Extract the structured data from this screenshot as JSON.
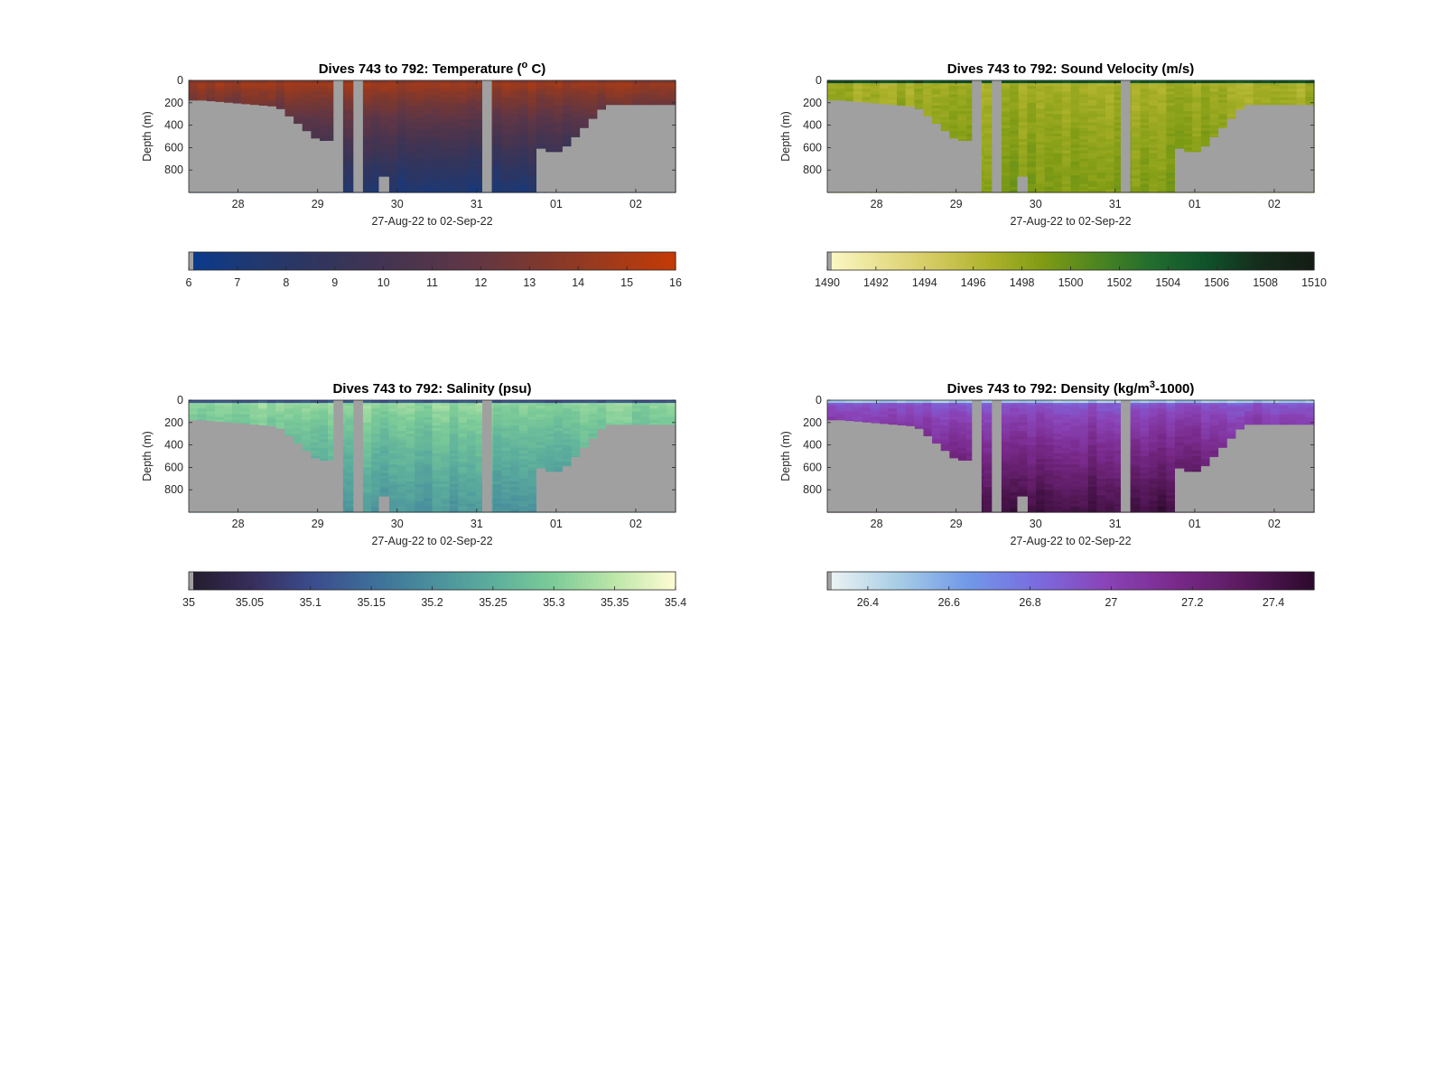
{
  "figure": {
    "background": "#ffffff",
    "land_color": "#a0a0a0"
  },
  "chart_data": [
    {
      "type": "heatmap",
      "title": "Dives 743 to 792: Temperature (° C)",
      "title_parts": [
        "Dives 743 to 792: Temperature (",
        "o",
        " C)"
      ],
      "xlabel": "27-Aug-22 to 02-Sep-22",
      "ylabel": "Depth (m)",
      "xticks": [
        "28",
        "29",
        "30",
        "31",
        "01",
        "02"
      ],
      "xtick_values": [
        28,
        29,
        30,
        31,
        32,
        33
      ],
      "xlim": [
        27.38,
        33.5
      ],
      "yticks": [
        "0",
        "200",
        "400",
        "600",
        "800"
      ],
      "ytick_values": [
        0,
        200,
        400,
        600,
        800
      ],
      "ylim": [
        1000,
        0
      ],
      "colorbar": {
        "range": [
          6,
          16
        ],
        "ticks": [
          "6",
          "7",
          "8",
          "9",
          "10",
          "11",
          "12",
          "13",
          "14",
          "15",
          "16"
        ],
        "tick_values": [
          6,
          7,
          8,
          9,
          10,
          11,
          12,
          13,
          14,
          15,
          16
        ],
        "colors": [
          "#0a3a8c",
          "#22386e",
          "#33355c",
          "#47344f",
          "#5e3646",
          "#7c382f",
          "#9e3a1c",
          "#c43a06"
        ]
      },
      "surface_value": 13.5,
      "bottom_value": 7.0,
      "near_surface_value": 14.5
    },
    {
      "type": "heatmap",
      "title": "Dives 743 to 792: Sound Velocity (m/s)",
      "title_parts": [
        "Dives 743 to 792: Sound Velocity (m/s)"
      ],
      "xlabel": "27-Aug-22 to 02-Sep-22",
      "ylabel": "Depth (m)",
      "xticks": [
        "28",
        "29",
        "30",
        "31",
        "01",
        "02"
      ],
      "xtick_values": [
        28,
        29,
        30,
        31,
        32,
        33
      ],
      "xlim": [
        27.38,
        33.5
      ],
      "yticks": [
        "0",
        "200",
        "400",
        "600",
        "800"
      ],
      "ytick_values": [
        0,
        200,
        400,
        600,
        800
      ],
      "ylim": [
        1000,
        0
      ],
      "colorbar": {
        "range": [
          1490,
          1510
        ],
        "ticks": [
          "1490",
          "1492",
          "1494",
          "1496",
          "1498",
          "1500",
          "1502",
          "1504",
          "1506",
          "1508",
          "1510"
        ],
        "tick_values": [
          1490,
          1492,
          1494,
          1496,
          1498,
          1500,
          1502,
          1504,
          1506,
          1508,
          1510
        ],
        "colors": [
          "#fcf8c6",
          "#e8df8e",
          "#d2c95d",
          "#adb22a",
          "#7f9b14",
          "#4d8521",
          "#226d2e",
          "#0f532b",
          "#152d1c",
          "#141d14"
        ]
      },
      "surface_value": 1505.5,
      "bottom_value": 1499.0,
      "near_surface_value": 1497.0
    },
    {
      "type": "heatmap",
      "title": "Dives 743 to 792: Salinity (psu)",
      "title_parts": [
        "Dives 743 to 792: Salinity (psu)"
      ],
      "xlabel": "27-Aug-22 to 02-Sep-22",
      "ylabel": "Depth (m)",
      "xticks": [
        "28",
        "29",
        "30",
        "31",
        "01",
        "02"
      ],
      "xtick_values": [
        28,
        29,
        30,
        31,
        32,
        33
      ],
      "xlim": [
        27.38,
        33.5
      ],
      "yticks": [
        "0",
        "200",
        "400",
        "600",
        "800"
      ],
      "ytick_values": [
        0,
        200,
        400,
        600,
        800
      ],
      "ylim": [
        1000,
        0
      ],
      "colorbar": {
        "range": [
          35,
          35.4
        ],
        "ticks": [
          "35",
          "35.05",
          "35.1",
          "35.15",
          "35.2",
          "35.25",
          "35.3",
          "35.35",
          "35.4"
        ],
        "tick_values": [
          35,
          35.05,
          35.1,
          35.15,
          35.2,
          35.25,
          35.3,
          35.35,
          35.4
        ],
        "colors": [
          "#241c2e",
          "#382e5c",
          "#3b4b8c",
          "#3d6e99",
          "#4a8f9c",
          "#5cae9c",
          "#7ccb98",
          "#bbe6a8",
          "#fdfbd2"
        ]
      },
      "surface_value": 35.12,
      "bottom_value": 35.21,
      "near_surface_value": 35.32
    },
    {
      "type": "heatmap",
      "title": "Dives 743 to 792: Density (kg/m³-1000)",
      "title_parts": [
        "Dives 743 to 792: Density (kg/m",
        "3",
        "-1000)"
      ],
      "xlabel": "27-Aug-22 to 02-Sep-22",
      "ylabel": "Depth (m)",
      "xticks": [
        "28",
        "29",
        "30",
        "31",
        "01",
        "02"
      ],
      "xtick_values": [
        28,
        29,
        30,
        31,
        32,
        33
      ],
      "xlim": [
        27.38,
        33.5
      ],
      "yticks": [
        "0",
        "200",
        "400",
        "600",
        "800"
      ],
      "ytick_values": [
        0,
        200,
        400,
        600,
        800
      ],
      "ylim": [
        1000,
        0
      ],
      "colorbar": {
        "range": [
          26.3,
          27.5
        ],
        "ticks": [
          "26.4",
          "26.6",
          "26.8",
          "27",
          "27.2",
          "27.4"
        ],
        "tick_values": [
          26.4,
          26.6,
          26.8,
          27,
          27.2,
          27.4
        ],
        "colors": [
          "#eef3f3",
          "#a7cde6",
          "#7199e8",
          "#7a6ce0",
          "#8a44b8",
          "#7a2a8c",
          "#5a1a5e",
          "#2e0a2e"
        ]
      },
      "surface_value": 26.5,
      "bottom_value": 27.45,
      "near_surface_value": 26.9
    }
  ]
}
